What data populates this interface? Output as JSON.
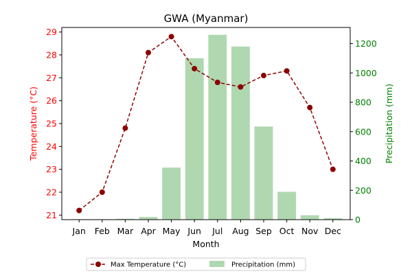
{
  "chart_data": {
    "type": "bar+line",
    "title": "GWA (Myanmar)",
    "xlabel": "Month",
    "categories": [
      "Jan",
      "Feb",
      "Mar",
      "Apr",
      "May",
      "Jun",
      "Jul",
      "Aug",
      "Sep",
      "Oct",
      "Nov",
      "Dec"
    ],
    "left_axis": {
      "label": "Temperature (°C)",
      "color": "#ff0000",
      "ylim": [
        20.8,
        29.2
      ],
      "ticks": [
        21,
        22,
        23,
        24,
        25,
        26,
        27,
        28,
        29
      ]
    },
    "right_axis": {
      "label": "Precipitation (mm)",
      "color": "#008000",
      "ylim": [
        0,
        1310
      ],
      "ticks": [
        0,
        200,
        400,
        600,
        800,
        1000,
        1200
      ]
    },
    "series": [
      {
        "name": "Max Temperature (°C)",
        "kind": "line",
        "axis": "left",
        "color": "#8b0000",
        "values": [
          21.2,
          22.0,
          24.8,
          28.1,
          28.8,
          27.4,
          26.8,
          26.6,
          27.1,
          27.3,
          25.7,
          23.0
        ]
      },
      {
        "name": "Precipitation (mm)",
        "kind": "bar",
        "axis": "right",
        "color": "#b0d8b0",
        "values": [
          3,
          3,
          6,
          18,
          355,
          1100,
          1260,
          1180,
          635,
          190,
          30,
          10
        ]
      }
    ],
    "legend": "bottom-center",
    "grid": false
  }
}
